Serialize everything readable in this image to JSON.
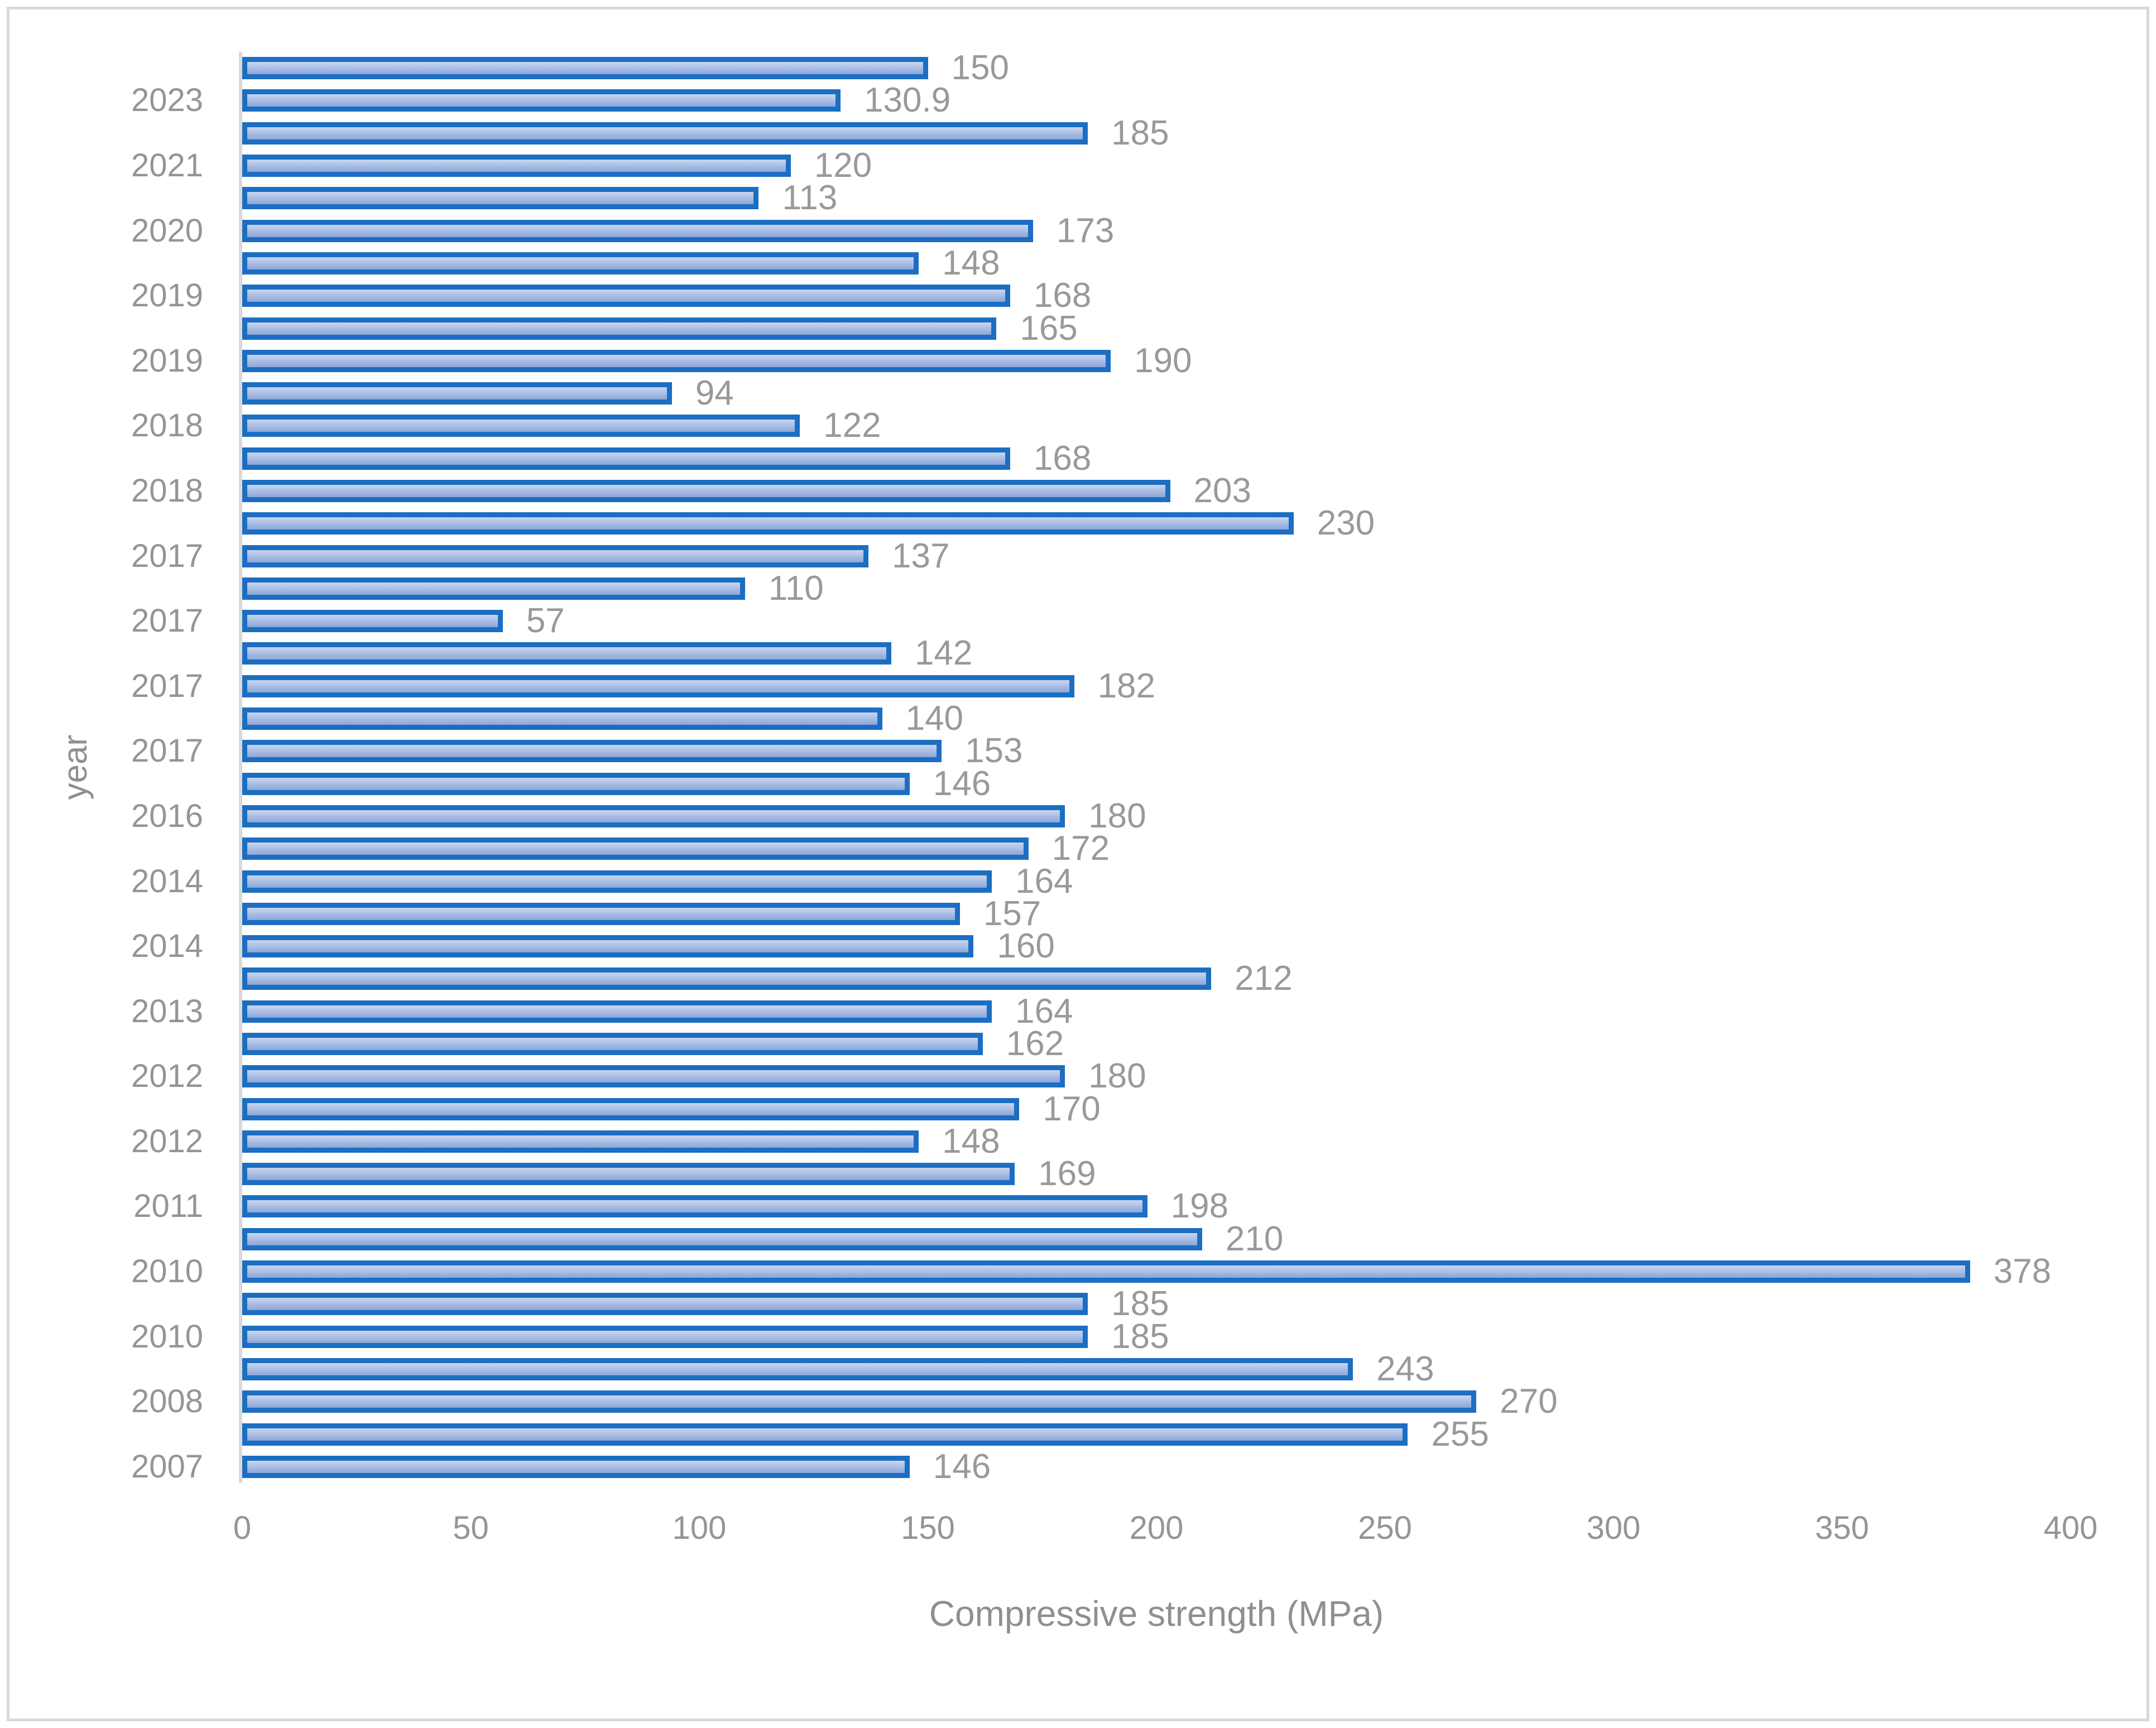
{
  "chart_data": {
    "type": "bar",
    "orientation": "horizontal",
    "title": "",
    "xlabel": "Compressive strength (MPa)",
    "ylabel": "year",
    "xlim": [
      0,
      400
    ],
    "xticks": [
      0,
      50,
      100,
      150,
      200,
      250,
      300,
      350,
      400
    ],
    "grid": false,
    "legend": "none",
    "bars_per_group": 2,
    "note": "Each year label is aligned with the second (lower) bar of its pair; bars listed top-to-bottom",
    "groups": [
      {
        "year": "2023",
        "values": [
          150,
          130.9
        ]
      },
      {
        "year": "2021",
        "values": [
          185,
          120
        ]
      },
      {
        "year": "2020",
        "values": [
          113,
          173
        ]
      },
      {
        "year": "2019",
        "values": [
          148,
          168
        ]
      },
      {
        "year": "2019",
        "values": [
          165,
          190
        ]
      },
      {
        "year": "2018",
        "values": [
          94,
          122
        ]
      },
      {
        "year": "2018",
        "values": [
          168,
          203
        ]
      },
      {
        "year": "2017",
        "values": [
          230,
          137
        ]
      },
      {
        "year": "2017",
        "values": [
          110,
          57
        ]
      },
      {
        "year": "2017",
        "values": [
          142,
          182
        ]
      },
      {
        "year": "2017",
        "values": [
          140,
          153
        ]
      },
      {
        "year": "2016",
        "values": [
          146,
          180
        ]
      },
      {
        "year": "2014",
        "values": [
          172,
          164
        ]
      },
      {
        "year": "2014",
        "values": [
          157,
          160
        ]
      },
      {
        "year": "2013",
        "values": [
          212,
          164
        ]
      },
      {
        "year": "2012",
        "values": [
          162,
          180
        ]
      },
      {
        "year": "2012",
        "values": [
          170,
          148
        ]
      },
      {
        "year": "2011",
        "values": [
          169,
          198
        ]
      },
      {
        "year": "2010",
        "values": [
          210,
          378
        ]
      },
      {
        "year": "2010",
        "values": [
          185,
          185
        ]
      },
      {
        "year": "2008",
        "values": [
          243,
          270
        ]
      },
      {
        "year": "2007",
        "values": [
          255,
          146
        ]
      }
    ]
  },
  "colors": {
    "bar_fill_top": "#c9d6ee",
    "bar_fill_bottom": "#8ba6da",
    "bar_border": "#1b6ec2",
    "axis_line": "#d9d9d9",
    "label_text": "#999999",
    "frame_border": "#d9d9d9",
    "background": "#ffffff"
  }
}
